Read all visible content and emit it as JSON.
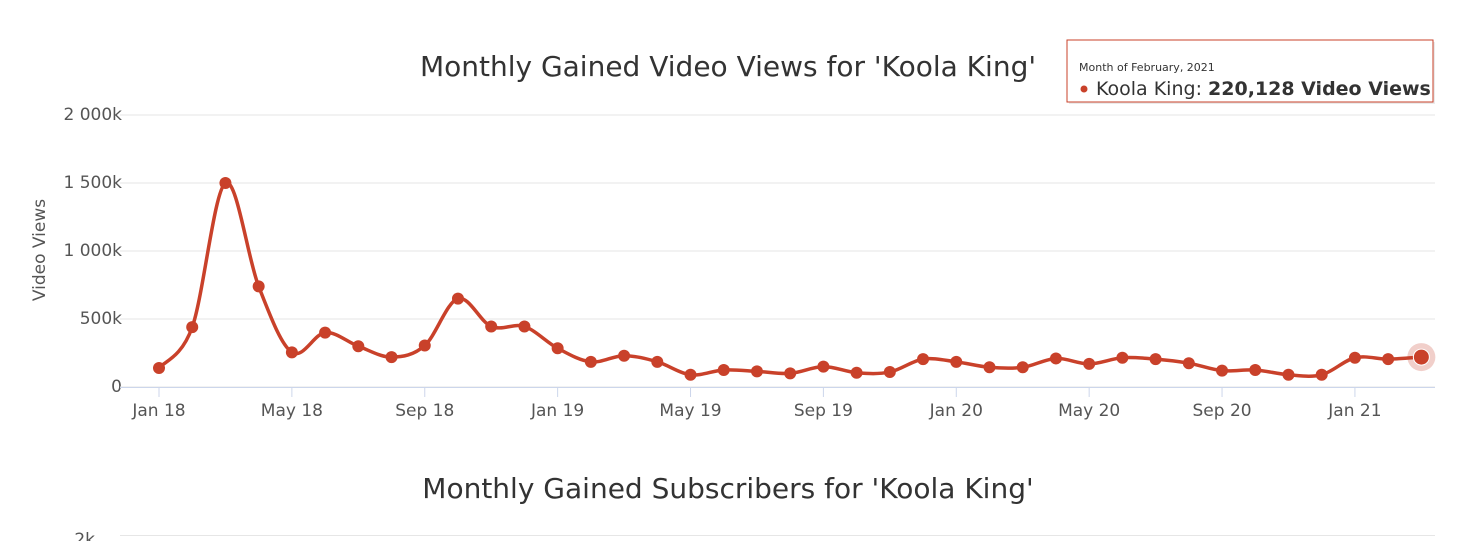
{
  "chart_data": [
    {
      "type": "line",
      "title": "Monthly Gained Video Views for 'Koola King'",
      "y_axis_label": "Video Views",
      "categories": [
        "Jan 18",
        null,
        null,
        null,
        "May 18",
        null,
        null,
        null,
        "Sep 18",
        null,
        null,
        null,
        "Jan 19",
        null,
        null,
        null,
        "May 19",
        null,
        null,
        null,
        "Sep 19",
        null,
        null,
        null,
        "Jan 20",
        null,
        null,
        null,
        "May 20",
        null,
        null,
        null,
        "Sep 20",
        null,
        null,
        null,
        "Jan 21",
        null,
        null
      ],
      "series": [
        {
          "name": "Koola King",
          "color": "#c9412a",
          "values": [
            140000,
            440000,
            1500000,
            740000,
            255000,
            400000,
            300000,
            220000,
            305000,
            650000,
            445000,
            445000,
            285000,
            185000,
            230000,
            185000,
            90000,
            125000,
            115000,
            100000,
            150000,
            105000,
            110000,
            205000,
            185000,
            145000,
            145000,
            210000,
            170000,
            215000,
            205000,
            175000,
            120000,
            125000,
            90000,
            90000,
            215000,
            205000,
            220128
          ]
        }
      ],
      "ylim": [
        0,
        2000000
      ],
      "yticks": [
        0,
        {
          "value": 500000,
          "label": "500k"
        },
        {
          "value": 1000000,
          "label": "1 000k"
        },
        {
          "value": 1500000,
          "label": "1 500k"
        },
        {
          "value": 2000000,
          "label": "2 000k"
        }
      ],
      "grid": true,
      "tooltip": {
        "header": "Month of February, 2021",
        "series": "Koola King",
        "value": 220128,
        "value_label": "220,128 Video Views"
      }
    },
    {
      "type": "line",
      "title": "Monthly Gained Subscribers for 'Koola King'",
      "yticks": [
        {
          "value": 2000,
          "label": "2k"
        }
      ],
      "grid": true
    }
  ]
}
